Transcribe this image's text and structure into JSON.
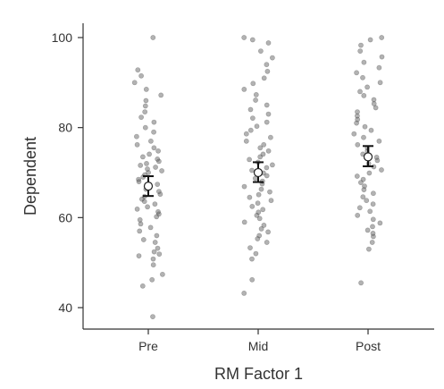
{
  "chart_data": {
    "type": "scatter",
    "title": "",
    "xlabel": "RM Factor 1",
    "ylabel": "Dependent",
    "categories": [
      "Pre",
      "Mid",
      "Post"
    ],
    "ylim": [
      35,
      103
    ],
    "yticks": [
      40,
      60,
      80,
      100
    ],
    "grid": false,
    "series": [
      {
        "values": [
          38,
          44.8,
          46.2,
          47.4,
          49.5,
          50.8,
          51.5,
          51.9,
          52.4,
          53.2,
          54.5,
          55.1,
          56,
          57,
          57.8,
          58.6,
          59.5,
          60.2,
          60.8,
          61.3,
          61.9,
          62.4,
          63,
          63.6,
          64.1,
          64.7,
          65.2,
          65.8,
          66.3,
          66.9,
          67.4,
          68,
          68.5,
          69,
          69.5,
          70,
          70.4,
          70.8,
          71.2,
          71.6,
          72,
          72.5,
          73,
          73.5,
          74.1,
          74.8,
          75.5,
          76.2,
          77,
          78,
          79,
          80,
          81.2,
          82.3,
          83.5,
          84.8,
          86,
          87.2,
          88.5,
          90,
          91.5,
          92.8,
          100
        ],
        "mean": 67,
        "ci": [
          64.8,
          69.2
        ]
      },
      {
        "values": [
          43.2,
          46.2,
          50.8,
          52,
          53.3,
          54.5,
          55.3,
          56,
          56.8,
          57.5,
          58.3,
          59,
          59.8,
          60.5,
          61.2,
          61.8,
          62.5,
          63.2,
          63.8,
          64.5,
          65.1,
          65.7,
          66.3,
          66.9,
          67.5,
          68.1,
          68.7,
          69.3,
          69.9,
          70.5,
          71.1,
          71.7,
          72.3,
          72.9,
          73.5,
          74.1,
          74.8,
          75.5,
          76.2,
          77,
          77.8,
          78.6,
          79.4,
          80.3,
          81.2,
          82.1,
          83,
          84,
          85,
          86.1,
          87.3,
          88.5,
          89.8,
          91,
          92.5,
          94,
          95.5,
          97,
          98.8,
          99.5,
          100
        ],
        "mean": 70,
        "ci": [
          67.9,
          72.3
        ]
      },
      {
        "values": [
          45.5,
          53,
          54.5,
          55.8,
          56.5,
          57.2,
          58,
          58.8,
          59.6,
          60.5,
          61.4,
          62.2,
          63,
          63.8,
          64.6,
          65.4,
          66.2,
          67,
          67.8,
          68.5,
          69.2,
          69.9,
          70.6,
          71.3,
          72,
          72.7,
          73.4,
          74.1,
          74.8,
          75.5,
          76.2,
          77,
          77.8,
          78.6,
          79.4,
          80.2,
          81,
          81.8,
          82.6,
          83.5,
          84.4,
          85.3,
          86.2,
          87.1,
          88,
          89,
          90,
          91.1,
          92.2,
          93.3,
          94.5,
          95.7,
          97,
          98.3,
          99.5,
          100
        ],
        "mean": 73.5,
        "ci": [
          71.4,
          75.9
        ]
      }
    ]
  }
}
